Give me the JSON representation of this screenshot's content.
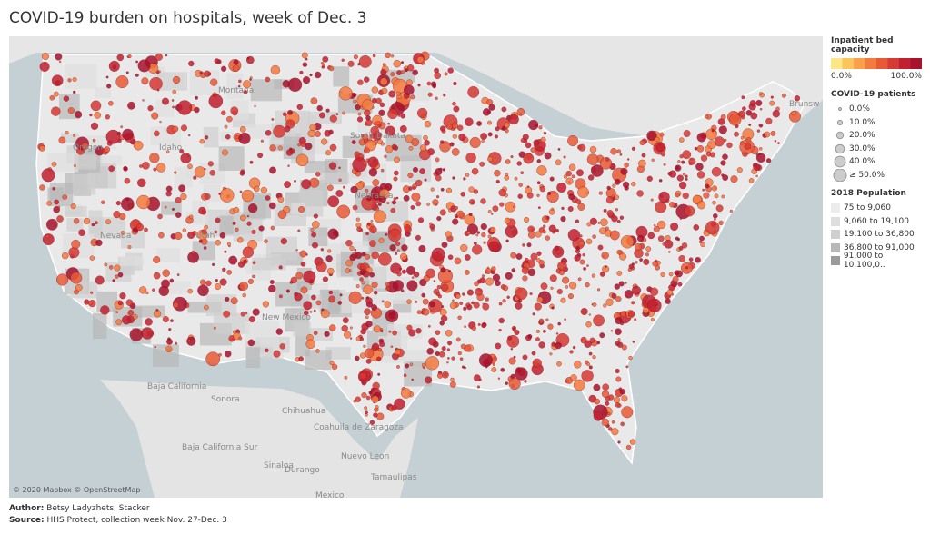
{
  "header": {
    "title": "COVID-19 burden on hospitals, week of Dec. 3"
  },
  "legend": {
    "bed_capacity": {
      "title": "Inpatient bed capacity",
      "min_label": "0.0%",
      "max_label": "100.0%"
    },
    "patients": {
      "title": "COVID-19 patients",
      "items": [
        "0.0%",
        "10.0%",
        "20.0%",
        "30.0%",
        "40.0%",
        "≥ 50.0%"
      ]
    },
    "population": {
      "title": "2018 Population",
      "items": [
        "75 to 9,060",
        "9,060 to 19,100",
        "19,100 to 36,800",
        "36,800 to 91,000",
        "91,000 to 10,100,0.."
      ]
    }
  },
  "map": {
    "labels": [
      "Montana",
      "Idaho",
      "Oregon",
      "Nevada",
      "Utah",
      "New Mexico",
      "Nebraska",
      "South Dakota",
      "Brunsw",
      "Baja California",
      "Sonora",
      "Chihuahua",
      "Coahuila de Zaragoza",
      "Baja California Sur",
      "Sinaloa",
      "Durango",
      "Nuevo Leon",
      "Tamaulipas",
      "Mexico"
    ],
    "attribution": "© 2020 Mapbox © OpenStreetMap"
  },
  "footer": {
    "author": {
      "label": "Author:",
      "text": "Betsy Ladyzhets, Stacker"
    },
    "source": {
      "label": "Source:",
      "text": "HHS Protect, collection week Nov. 27-Dec. 3"
    }
  }
}
